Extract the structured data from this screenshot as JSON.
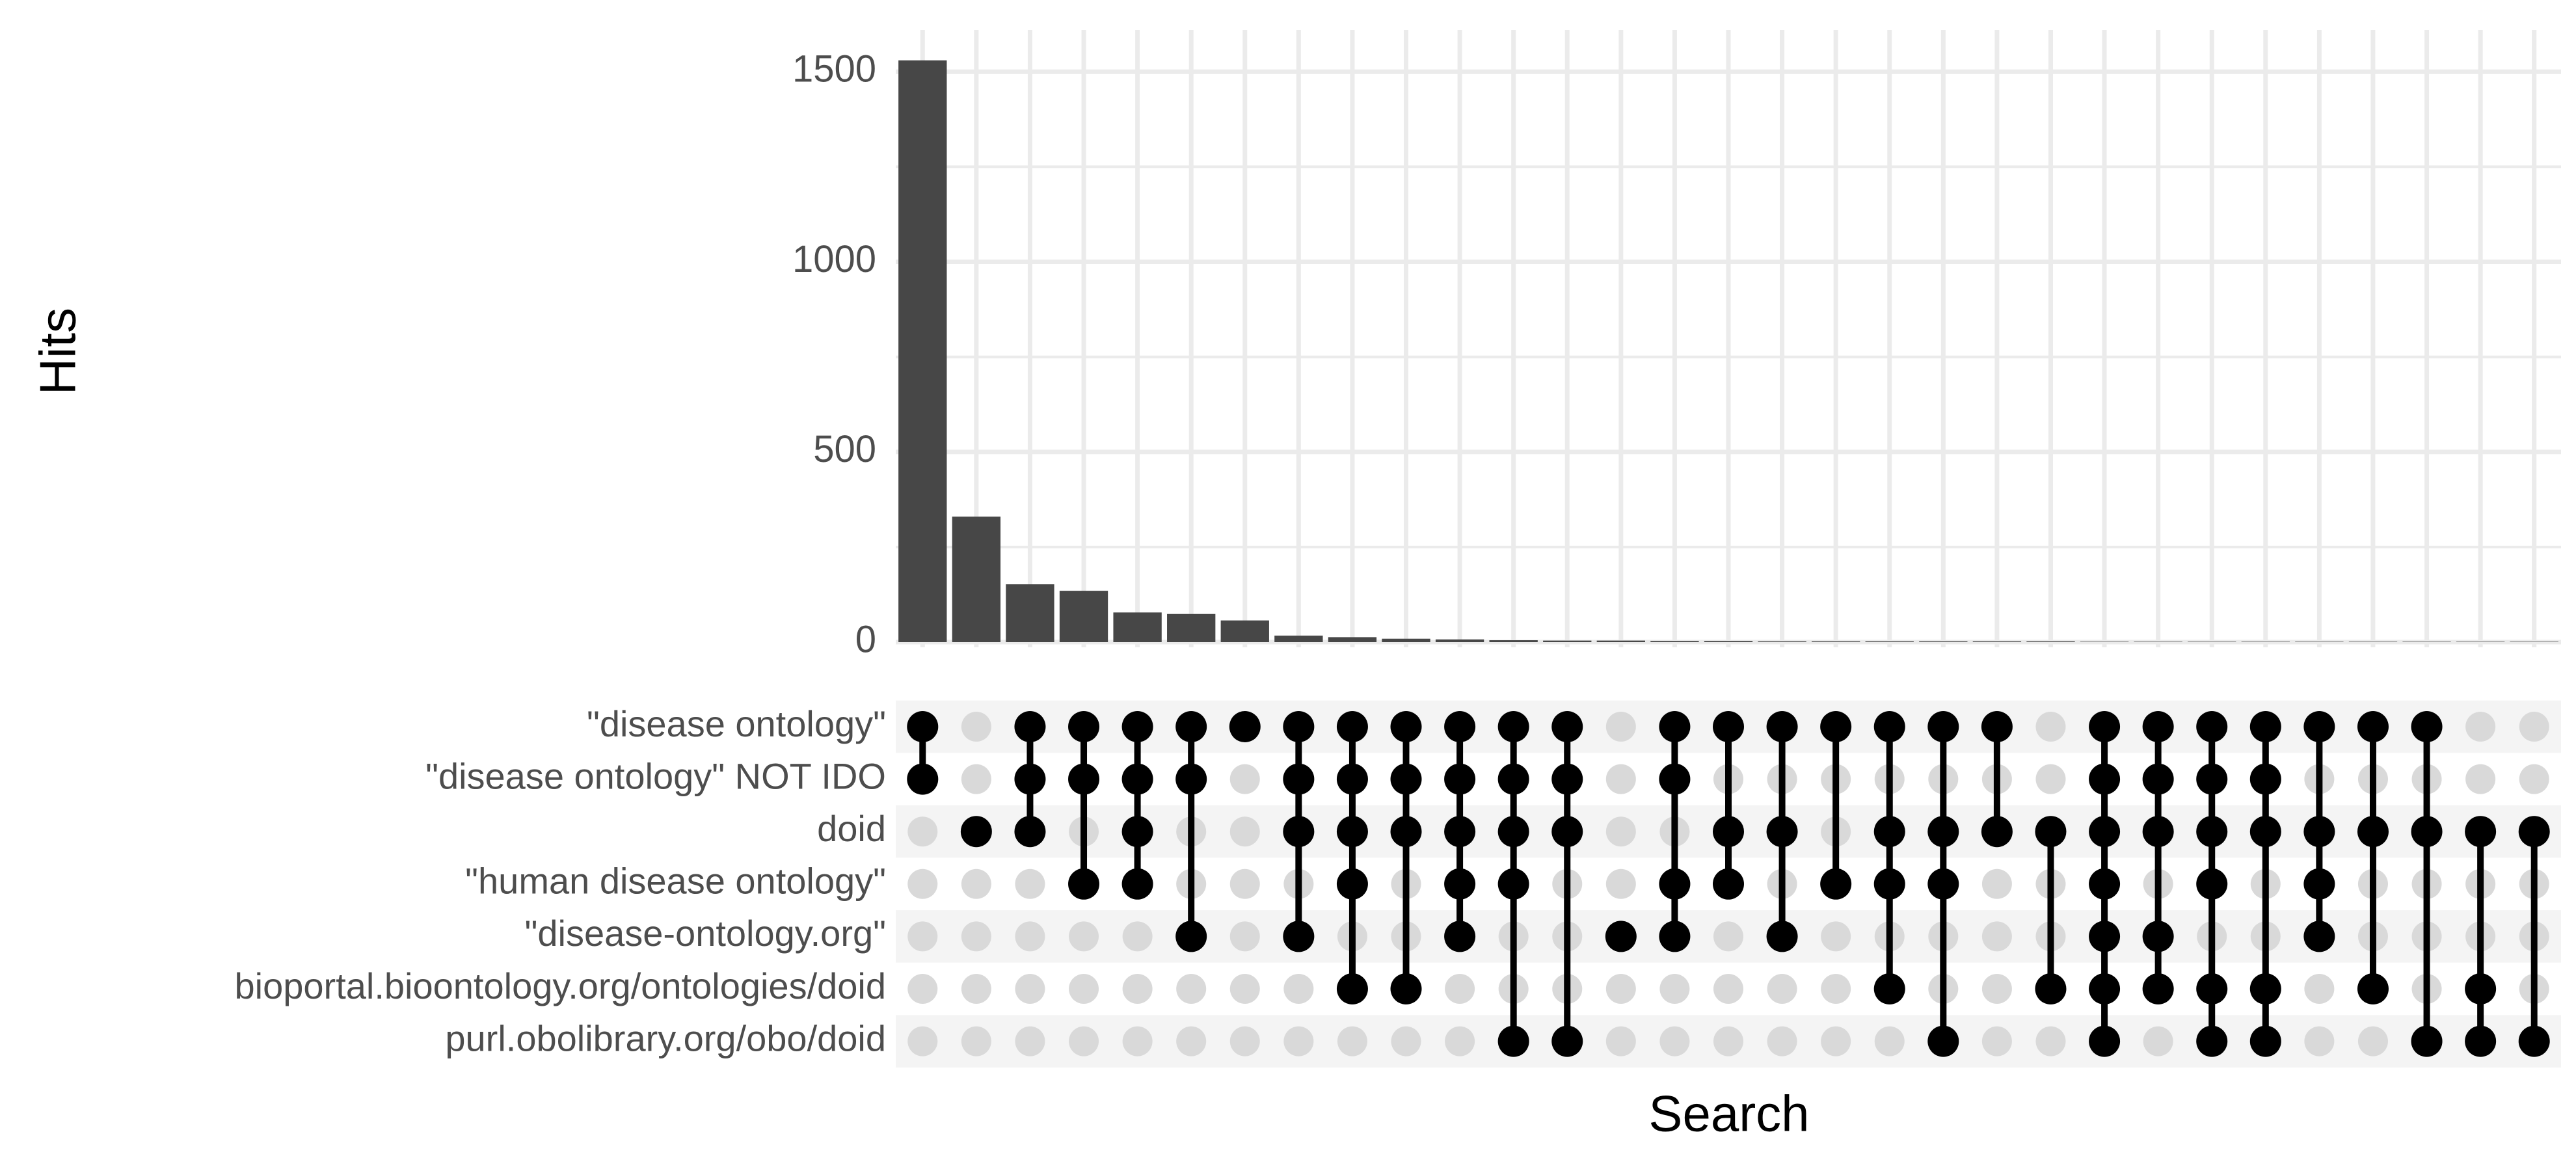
{
  "chart_data": {
    "type": "upset",
    "ylabel": "Hits",
    "xlabel": "Search",
    "sets": [
      "\"disease ontology\"",
      "\"disease ontology\" NOT IDO",
      "doid",
      "\"human disease ontology\"",
      "\"disease-ontology.org\"",
      "bioportal.bioontology.org/ontologies/doid",
      "purl.obolibrary.org/obo/doid"
    ],
    "values": [
      1530,
      330,
      152,
      135,
      78,
      74,
      57,
      17,
      13,
      9,
      7,
      5,
      4,
      4,
      3,
      3,
      2,
      2,
      2,
      2,
      2,
      2,
      1,
      1,
      1,
      1,
      1,
      1,
      1,
      1,
      1
    ],
    "combinations": [
      [
        0,
        1
      ],
      [
        2
      ],
      [
        0,
        1,
        2
      ],
      [
        0,
        1,
        3
      ],
      [
        0,
        1,
        2,
        3
      ],
      [
        0,
        1,
        4
      ],
      [
        0
      ],
      [
        0,
        1,
        2,
        4
      ],
      [
        0,
        1,
        2,
        3,
        5
      ],
      [
        0,
        1,
        2,
        5
      ],
      [
        0,
        1,
        2,
        3,
        4
      ],
      [
        0,
        1,
        2,
        3,
        6
      ],
      [
        0,
        1,
        2,
        6
      ],
      [
        4
      ],
      [
        0,
        1,
        3,
        4
      ],
      [
        0,
        2,
        3
      ],
      [
        0,
        2,
        4
      ],
      [
        0,
        3
      ],
      [
        0,
        2,
        3,
        5
      ],
      [
        0,
        2,
        3,
        6
      ],
      [
        0,
        2
      ],
      [
        2,
        5
      ],
      [
        0,
        1,
        2,
        3,
        4,
        5,
        6
      ],
      [
        0,
        1,
        2,
        4,
        5
      ],
      [
        0,
        1,
        2,
        3,
        5,
        6
      ],
      [
        0,
        1,
        2,
        5,
        6
      ],
      [
        0,
        2,
        3,
        4
      ],
      [
        0,
        2,
        5
      ],
      [
        0,
        2,
        6
      ],
      [
        2,
        5,
        6
      ],
      [
        2,
        6
      ]
    ],
    "color": "#474747",
    "dot_color": "#000000",
    "empty_dot_color": "#d9d9d9",
    "ylim": [
      0,
      1610
    ],
    "yticks": [
      0,
      500,
      1000,
      1500
    ],
    "minor_yticks": [
      250,
      750,
      1250
    ],
    "grid": true
  }
}
